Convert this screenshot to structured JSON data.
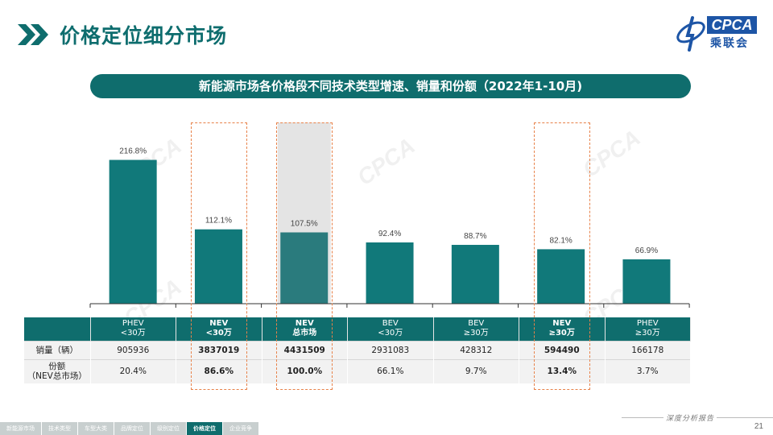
{
  "page_title": "价格定位细分市场",
  "logo": {
    "brand": "CPCA",
    "name_cn": "乘联会",
    "sub": "CPCA"
  },
  "chart_data": {
    "type": "bar",
    "title": "新能源市场各价格段不同技术类型增速、销量和份额（2022年1-10月)",
    "categories": [
      {
        "line1": "PHEV",
        "line2": "<30万",
        "bold": false
      },
      {
        "line1": "NEV",
        "line2": "<30万",
        "bold": true
      },
      {
        "line1": "NEV",
        "line2": "总市场",
        "bold": true
      },
      {
        "line1": "BEV",
        "line2": "<30万",
        "bold": false
      },
      {
        "line1": "BEV",
        "line2": "≥30万",
        "bold": false
      },
      {
        "line1": "NEV",
        "line2": "≥30万",
        "bold": true
      },
      {
        "line1": "PHEV",
        "line2": "≥30万",
        "bold": false
      }
    ],
    "values": [
      216.8,
      112.1,
      107.5,
      92.4,
      88.7,
      82.1,
      66.9
    ],
    "value_labels": [
      "216.8%",
      "112.1%",
      "107.5%",
      "92.4%",
      "88.7%",
      "82.1%",
      "66.9%"
    ],
    "unit": "%",
    "ylim": [
      0,
      300
    ],
    "highlighted": [
      1,
      2,
      5
    ],
    "shaded": [
      2
    ],
    "bar_color": "#11797a",
    "shaded_bar_color": "#2a7b7d",
    "table": {
      "row_labels": [
        {
          "line1": "销量（辆）",
          "line2": ""
        },
        {
          "line1": "份额",
          "line2": "（NEV总市场）"
        }
      ],
      "rows": [
        [
          "905936",
          "3837019",
          "4431509",
          "2931083",
          "428312",
          "594490",
          "166178"
        ],
        [
          "20.4%",
          "86.6%",
          "100.0%",
          "66.1%",
          "9.7%",
          "13.4%",
          "3.7%"
        ]
      ],
      "bold_columns": [
        1,
        2,
        5
      ]
    }
  },
  "colors": {
    "accent": "#0f6d6d",
    "highlight_border": "#e8824a",
    "brand_blue": "#1d55a6"
  },
  "footer": {
    "tag": "深度分析报告",
    "page_number": "21"
  },
  "nav": {
    "items": [
      "新能源市场",
      "技术类型",
      "车型大类",
      "品牌定位",
      "级别定位",
      "价格定位",
      "企业竞争"
    ],
    "active": 5
  }
}
